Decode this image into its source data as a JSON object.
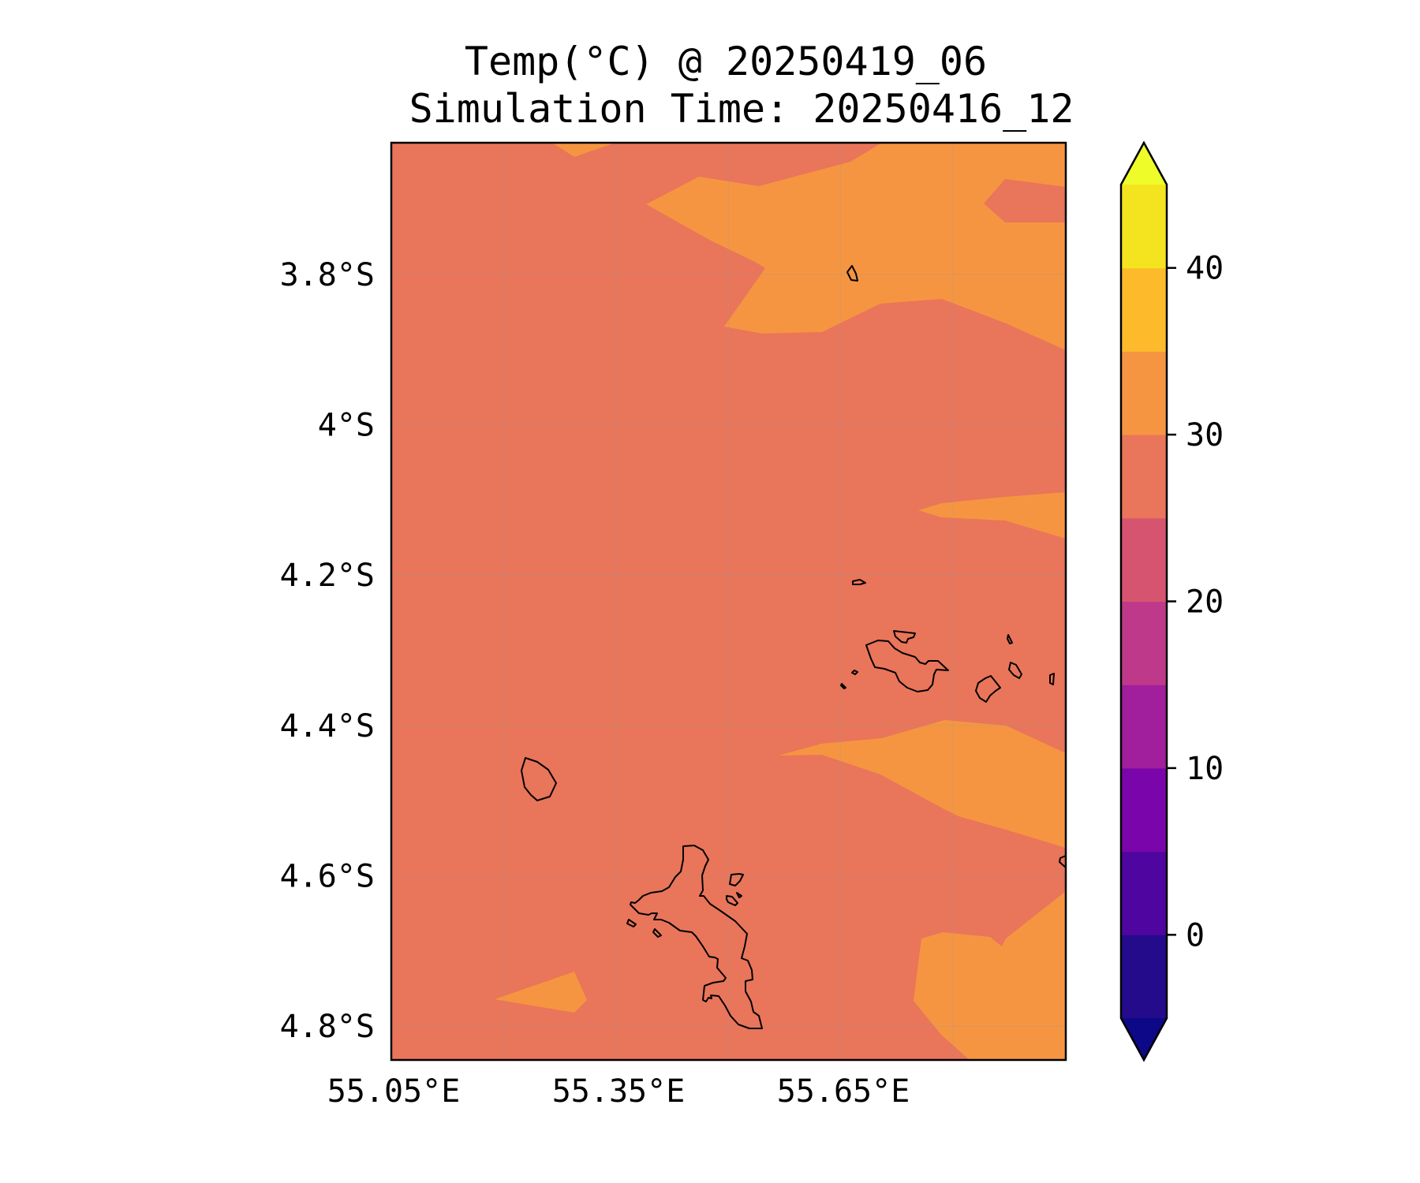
{
  "title_line1": "Temp(°C) @ 20250419_06",
  "title_line2": "Simulation Time: 20250416_12",
  "map": {
    "lon_range": [
      55.05,
      55.95
    ],
    "lat_range": [
      -4.845,
      -3.625
    ],
    "lon_ticks": [
      {
        "value": 55.05,
        "label": "55.05°E"
      },
      {
        "value": 55.35,
        "label": "55.35°E"
      },
      {
        "value": 55.65,
        "label": "55.65°E"
      }
    ],
    "lat_ticks": [
      {
        "value": -3.8,
        "label": "3.8°S"
      },
      {
        "value": -4.0,
        "label": "4°S"
      },
      {
        "value": -4.2,
        "label": "4.2°S"
      },
      {
        "value": -4.4,
        "label": "4.4°S"
      },
      {
        "value": -4.6,
        "label": "4.6°S"
      },
      {
        "value": -4.8,
        "label": "4.8°S"
      }
    ],
    "grid": true,
    "background_color": "#e9755a",
    "warm_color": "#f69541"
  },
  "colorbar": {
    "levels": [
      -5,
      0,
      5,
      10,
      15,
      20,
      25,
      30,
      35,
      40,
      45
    ],
    "colors": [
      "#240b8c",
      "#4f06a0",
      "#7a05aa",
      "#a11e9c",
      "#bf398a",
      "#d75471",
      "#e9755a",
      "#f69541",
      "#fdbb2b",
      "#f4e41f"
    ],
    "under_color": "#0d0887",
    "over_color": "#eefc2a",
    "extend": "both",
    "ticks": [
      {
        "value": 0,
        "label": "0"
      },
      {
        "value": 10,
        "label": "10"
      },
      {
        "value": 20,
        "label": "20"
      },
      {
        "value": 30,
        "label": "30"
      },
      {
        "value": 40,
        "label": "40"
      }
    ]
  }
}
